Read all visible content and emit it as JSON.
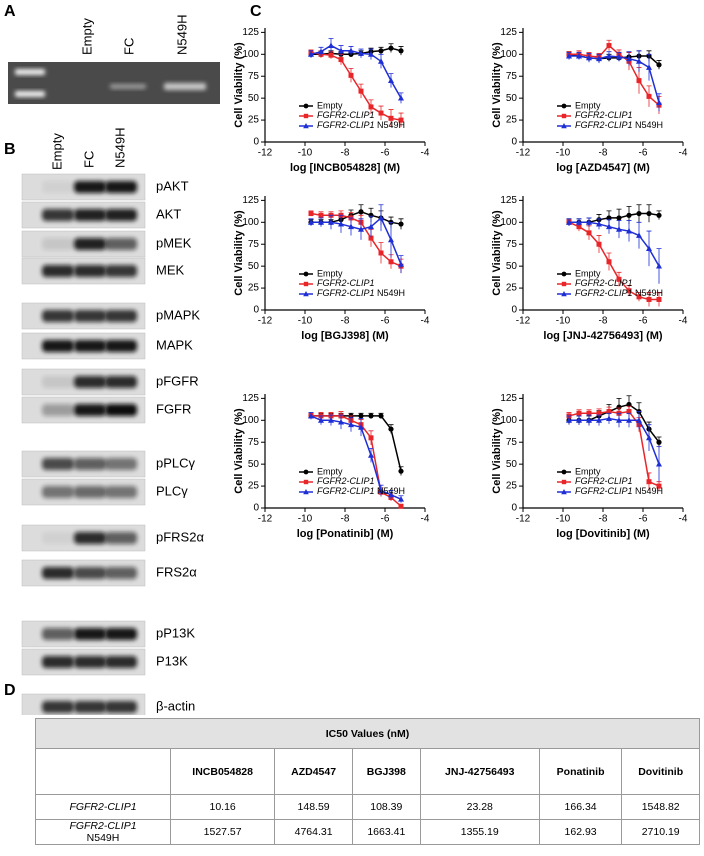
{
  "panel_labels": [
    "A",
    "B",
    "C",
    "D"
  ],
  "gel": {
    "lanes": [
      "Empty",
      "FC",
      "N549H"
    ]
  },
  "blot": {
    "lanes": [
      "Empty",
      "FC",
      "N549H"
    ],
    "rows": [
      "pAKT",
      "AKT",
      "pMEK",
      "MEK",
      "pMAPK",
      "MAPK",
      "pFGFR",
      "FGFR",
      "pPLCγ",
      "PLCγ",
      "pFRS2α",
      "FRS2α",
      "pP13K",
      "P13K",
      "β-actin"
    ]
  },
  "chart_data": [
    {
      "type": "line",
      "xlabel": "log [INCB054828] (M)",
      "ylabel": "Cell Viability (%)",
      "xlim": [
        -12,
        -4
      ],
      "xticks": [
        -12,
        -10,
        -8,
        -6,
        -4
      ],
      "ylim": [
        0,
        130
      ],
      "yticks": [
        0,
        25,
        50,
        75,
        100,
        125
      ],
      "x": [
        -9.7,
        -9.2,
        -8.7,
        -8.2,
        -7.7,
        -7.2,
        -6.7,
        -6.2,
        -5.7,
        -5.2
      ],
      "series": [
        {
          "name": "Empty",
          "color": "#000000",
          "marker": "circle",
          "values": [
            100,
            100,
            101,
            100,
            100,
            101,
            103,
            104,
            107,
            104
          ],
          "errors": [
            3,
            3,
            3,
            3,
            3,
            3,
            4,
            4,
            5,
            5
          ]
        },
        {
          "name": "FGFR2-CLIP1",
          "color": "#e8262a",
          "marker": "square",
          "values": [
            102,
            100,
            99,
            94,
            76,
            58,
            40,
            33,
            27,
            25
          ],
          "errors": [
            3,
            4,
            4,
            6,
            8,
            8,
            8,
            8,
            10,
            8
          ]
        },
        {
          "name": "FGFR2-CLIP1 N549H",
          "color": "#1f2fd6",
          "marker": "triangle",
          "values": [
            100,
            103,
            110,
            104,
            104,
            101,
            100,
            92,
            70,
            50
          ],
          "errors": [
            4,
            5,
            8,
            6,
            5,
            5,
            6,
            8,
            8,
            6
          ]
        }
      ]
    },
    {
      "type": "line",
      "xlabel": "log [AZD4547] (M)",
      "ylabel": "Cell Viability (%)",
      "xlim": [
        -12,
        -4
      ],
      "xticks": [
        -12,
        -10,
        -8,
        -6,
        -4
      ],
      "ylim": [
        0,
        130
      ],
      "yticks": [
        0,
        25,
        50,
        75,
        100,
        125
      ],
      "x": [
        -9.7,
        -9.2,
        -8.7,
        -8.2,
        -7.7,
        -7.2,
        -6.7,
        -6.2,
        -5.7,
        -5.2
      ],
      "series": [
        {
          "name": "Empty",
          "color": "#000000",
          "marker": "circle",
          "values": [
            100,
            98,
            96,
            95,
            96,
            96,
            97,
            98,
            98,
            88
          ],
          "errors": [
            3,
            3,
            4,
            4,
            4,
            3,
            5,
            6,
            6,
            5
          ]
        },
        {
          "name": "FGFR2-CLIP1",
          "color": "#e8262a",
          "marker": "square",
          "values": [
            100,
            100,
            98,
            97,
            110,
            100,
            92,
            70,
            52,
            42
          ],
          "errors": [
            3,
            4,
            4,
            4,
            6,
            5,
            10,
            15,
            12,
            10
          ]
        },
        {
          "name": "FGFR2-CLIP1 N549H",
          "color": "#1f2fd6",
          "marker": "triangle",
          "values": [
            98,
            98,
            96,
            95,
            98,
            97,
            95,
            92,
            85,
            45
          ],
          "errors": [
            4,
            4,
            5,
            5,
            5,
            5,
            8,
            12,
            15,
            10
          ]
        }
      ]
    },
    {
      "type": "line",
      "xlabel": "log [BGJ398] (M)",
      "ylabel": "Cell Viability (%)",
      "xlim": [
        -12,
        -4
      ],
      "xticks": [
        -12,
        -10,
        -8,
        -6,
        -4
      ],
      "ylim": [
        0,
        130
      ],
      "yticks": [
        0,
        25,
        50,
        75,
        100,
        125
      ],
      "x": [
        -9.7,
        -9.2,
        -8.7,
        -8.2,
        -7.7,
        -7.2,
        -6.7,
        -6.2,
        -5.7,
        -5.2
      ],
      "series": [
        {
          "name": "Empty",
          "color": "#000000",
          "marker": "circle",
          "values": [
            100,
            100,
            100,
            103,
            108,
            112,
            108,
            105,
            100,
            98
          ],
          "errors": [
            3,
            3,
            3,
            5,
            6,
            8,
            8,
            8,
            6,
            6
          ]
        },
        {
          "name": "FGFR2-CLIP1",
          "color": "#e8262a",
          "marker": "square",
          "values": [
            110,
            108,
            108,
            108,
            105,
            100,
            82,
            65,
            55,
            50
          ],
          "errors": [
            3,
            4,
            4,
            5,
            6,
            8,
            10,
            12,
            8,
            8
          ]
        },
        {
          "name": "FGFR2-CLIP1 N549H",
          "color": "#1f2fd6",
          "marker": "triangle",
          "values": [
            100,
            100,
            100,
            98,
            95,
            92,
            95,
            105,
            80,
            52
          ],
          "errors": [
            4,
            5,
            8,
            10,
            10,
            12,
            12,
            15,
            20,
            10
          ]
        }
      ]
    },
    {
      "type": "line",
      "xlabel": "log [JNJ-42756493] (M)",
      "ylabel": "Cell Viability (%)",
      "xlim": [
        -12,
        -4
      ],
      "xticks": [
        -12,
        -10,
        -8,
        -6,
        -4
      ],
      "ylim": [
        0,
        130
      ],
      "yticks": [
        0,
        25,
        50,
        75,
        100,
        125
      ],
      "x": [
        -9.7,
        -9.2,
        -8.7,
        -8.2,
        -7.7,
        -7.2,
        -6.7,
        -6.2,
        -5.7,
        -5.2
      ],
      "series": [
        {
          "name": "Empty",
          "color": "#000000",
          "marker": "circle",
          "values": [
            100,
            100,
            100,
            103,
            105,
            105,
            108,
            110,
            110,
            108
          ],
          "errors": [
            4,
            4,
            5,
            6,
            8,
            10,
            10,
            10,
            10,
            5
          ]
        },
        {
          "name": "FGFR2-CLIP1",
          "color": "#e8262a",
          "marker": "square",
          "values": [
            100,
            95,
            88,
            75,
            55,
            35,
            22,
            15,
            12,
            12
          ],
          "errors": [
            3,
            5,
            8,
            10,
            10,
            8,
            6,
            5,
            8,
            8
          ]
        },
        {
          "name": "FGFR2-CLIP1 N549H",
          "color": "#1f2fd6",
          "marker": "triangle",
          "values": [
            100,
            100,
            100,
            98,
            95,
            92,
            90,
            85,
            70,
            50
          ],
          "errors": [
            4,
            4,
            5,
            6,
            8,
            10,
            12,
            15,
            20,
            20
          ]
        }
      ]
    },
    {
      "type": "line",
      "xlabel": "log [Ponatinib] (M)",
      "ylabel": "Cell Viability (%)",
      "xlim": [
        -12,
        -4
      ],
      "xticks": [
        -12,
        -10,
        -8,
        -6,
        -4
      ],
      "ylim": [
        0,
        130
      ],
      "yticks": [
        0,
        25,
        50,
        75,
        100,
        125
      ],
      "x": [
        -9.7,
        -9.2,
        -8.7,
        -8.2,
        -7.7,
        -7.2,
        -6.7,
        -6.2,
        -5.7,
        -5.2
      ],
      "series": [
        {
          "name": "Empty",
          "color": "#000000",
          "marker": "circle",
          "values": [
            105,
            105,
            105,
            105,
            105,
            105,
            105,
            105,
            90,
            42
          ],
          "errors": [
            3,
            3,
            3,
            3,
            3,
            3,
            3,
            3,
            5,
            5
          ]
        },
        {
          "name": "FGFR2-CLIP1",
          "color": "#e8262a",
          "marker": "square",
          "values": [
            105,
            105,
            105,
            105,
            100,
            95,
            80,
            18,
            12,
            2
          ],
          "errors": [
            3,
            4,
            4,
            5,
            5,
            6,
            8,
            5,
            4,
            2
          ]
        },
        {
          "name": "FGFR2-CLIP1 N549H",
          "color": "#1f2fd6",
          "marker": "triangle",
          "values": [
            105,
            100,
            100,
            98,
            95,
            92,
            60,
            20,
            15,
            10
          ],
          "errors": [
            4,
            5,
            6,
            8,
            8,
            10,
            8,
            6,
            5,
            4
          ]
        }
      ]
    },
    {
      "type": "line",
      "xlabel": "log [Dovitinib] (M)",
      "ylabel": "Cell Viability (%)",
      "xlim": [
        -12,
        -4
      ],
      "xticks": [
        -12,
        -10,
        -8,
        -6,
        -4
      ],
      "ylim": [
        0,
        130
      ],
      "yticks": [
        0,
        25,
        50,
        75,
        100,
        125
      ],
      "x": [
        -9.7,
        -9.2,
        -8.7,
        -8.2,
        -7.7,
        -7.2,
        -6.7,
        -6.2,
        -5.7,
        -5.2
      ],
      "series": [
        {
          "name": "Empty",
          "color": "#000000",
          "marker": "circle",
          "values": [
            100,
            100,
            100,
            105,
            110,
            115,
            118,
            110,
            90,
            75
          ],
          "errors": [
            4,
            5,
            5,
            6,
            8,
            10,
            10,
            10,
            8,
            6
          ]
        },
        {
          "name": "FGFR2-CLIP1",
          "color": "#e8262a",
          "marker": "square",
          "values": [
            105,
            108,
            108,
            108,
            110,
            108,
            110,
            95,
            30,
            25
          ],
          "errors": [
            4,
            4,
            4,
            5,
            5,
            6,
            6,
            8,
            10,
            5
          ]
        },
        {
          "name": "FGFR2-CLIP1 N549H",
          "color": "#1f2fd6",
          "marker": "triangle",
          "values": [
            100,
            100,
            100,
            100,
            102,
            100,
            100,
            100,
            80,
            50
          ],
          "errors": [
            5,
            5,
            6,
            6,
            6,
            8,
            8,
            10,
            15,
            20
          ]
        }
      ]
    }
  ],
  "table": {
    "title": "IC50 Values (nM)",
    "columns": [
      "INCB054828",
      "AZD4547",
      "BGJ398",
      "JNJ-42756493",
      "Ponatinib",
      "Dovitinib"
    ],
    "rows": [
      {
        "label": "FGFR2-CLIP1",
        "values": [
          10.16,
          148.59,
          108.39,
          23.28,
          166.34,
          1548.82
        ]
      },
      {
        "label": "FGFR2-CLIP1 N549H",
        "values": [
          1527.57,
          4764.31,
          1663.41,
          1355.19,
          162.93,
          2710.19
        ]
      }
    ]
  }
}
